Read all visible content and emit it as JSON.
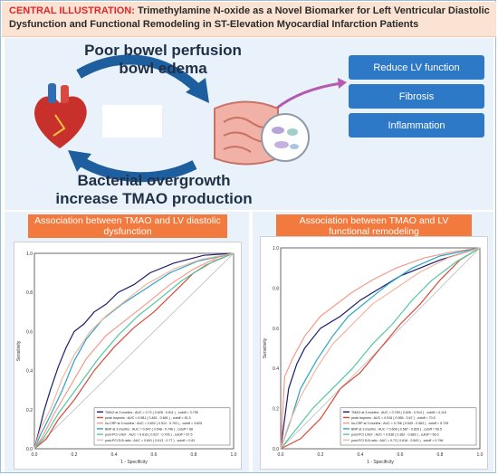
{
  "header": {
    "label": "CENTRAL ILLUSTRATION:",
    "title_line1": " Trimethylamine N-oxide as a Novel Biomarker for Left Ventricular Diastolic",
    "title_line2": "Dysfunction and Functional Remodeling in ST-Elevation Myocardial Infarction Patients"
  },
  "diagram": {
    "top_text_line1": "Poor bowel perfusion",
    "top_text_line2": "bowl edema",
    "bottom_text_line1": "Bacterial overgrowth",
    "bottom_text_line2": "increase TMAO production",
    "outcomes": [
      "Reduce LV function",
      "Fibrosis",
      "Inflammation"
    ],
    "icons": [
      "heart-icon",
      "intestine-icon",
      "bacteria-icon"
    ],
    "colors": {
      "arrow": "#1d5f9e",
      "box": "#2d79c7",
      "panel_title": "#f37a3e",
      "label_red": "#e0262a"
    }
  },
  "chart_data": [
    {
      "type": "line",
      "panel_title_line1": "Association between TMAO and LV diastolic",
      "panel_title_line2": "dysfunction",
      "xlabel": "1 - Specificity",
      "ylabel": "Sensitivity",
      "xlim": [
        0,
        1
      ],
      "ylim": [
        0,
        1
      ],
      "ticks": [
        "0.0",
        "0.2",
        "0.4",
        "0.6",
        "0.8",
        "1.0"
      ],
      "legend_position": "bottom-right",
      "legend": [
        "TMAO at 3 months : AUC = 0.72  ( 0.628 - 0.811 ) , cutoff = 3.795",
        "peak troponin : AUC = 0.581  ( 0.481 - 0.681 ) , cutoff = 61.3",
        "hs-CRP at 3 months : AUC = 0.602  ( 0.512 - 0.702 ) , cutoff = 3.625",
        "BNP at 3 months : AUC = 0.647  ( 0.548 - 0.746 ) , cutoff = 68",
        "post-PCI LVEF : AUC = 0.615  ( 0.527 - 0.705 ) , cutoff = 67.5",
        "post-PCI E/A ratio : AUC = 0.691  ( 0.613 - 0.77 ) , cutoff = 0.81"
      ],
      "series": [
        {
          "color": "#1b1f6b",
          "points": [
            [
              0,
              0
            ],
            [
              0.02,
              0.08
            ],
            [
              0.05,
              0.2
            ],
            [
              0.08,
              0.3
            ],
            [
              0.12,
              0.42
            ],
            [
              0.16,
              0.52
            ],
            [
              0.2,
              0.6
            ],
            [
              0.25,
              0.64
            ],
            [
              0.3,
              0.7
            ],
            [
              0.36,
              0.74
            ],
            [
              0.42,
              0.8
            ],
            [
              0.5,
              0.84
            ],
            [
              0.58,
              0.9
            ],
            [
              0.7,
              0.95
            ],
            [
              0.85,
              0.99
            ],
            [
              1,
              1
            ]
          ]
        },
        {
          "color": "#d84a3a",
          "points": [
            [
              0,
              0
            ],
            [
              0.06,
              0.05
            ],
            [
              0.12,
              0.15
            ],
            [
              0.2,
              0.25
            ],
            [
              0.3,
              0.4
            ],
            [
              0.4,
              0.52
            ],
            [
              0.5,
              0.62
            ],
            [
              0.6,
              0.7
            ],
            [
              0.7,
              0.8
            ],
            [
              0.8,
              0.9
            ],
            [
              0.9,
              0.96
            ],
            [
              1,
              1
            ]
          ]
        },
        {
          "color": "#f59a8a",
          "points": [
            [
              0,
              0
            ],
            [
              0.04,
              0.06
            ],
            [
              0.1,
              0.18
            ],
            [
              0.18,
              0.32
            ],
            [
              0.26,
              0.46
            ],
            [
              0.36,
              0.58
            ],
            [
              0.46,
              0.66
            ],
            [
              0.56,
              0.74
            ],
            [
              0.68,
              0.84
            ],
            [
              0.8,
              0.92
            ],
            [
              0.92,
              0.98
            ],
            [
              1,
              1
            ]
          ]
        },
        {
          "color": "#2aa6c6",
          "points": [
            [
              0,
              0
            ],
            [
              0.03,
              0.07
            ],
            [
              0.08,
              0.17
            ],
            [
              0.14,
              0.3
            ],
            [
              0.2,
              0.45
            ],
            [
              0.26,
              0.56
            ],
            [
              0.34,
              0.66
            ],
            [
              0.44,
              0.74
            ],
            [
              0.56,
              0.82
            ],
            [
              0.68,
              0.9
            ],
            [
              0.82,
              0.96
            ],
            [
              1,
              1
            ]
          ]
        },
        {
          "color": "#55c7a0",
          "points": [
            [
              0,
              0
            ],
            [
              0.05,
              0.06
            ],
            [
              0.12,
              0.18
            ],
            [
              0.22,
              0.32
            ],
            [
              0.32,
              0.46
            ],
            [
              0.42,
              0.58
            ],
            [
              0.52,
              0.68
            ],
            [
              0.62,
              0.76
            ],
            [
              0.74,
              0.86
            ],
            [
              0.86,
              0.94
            ],
            [
              1,
              1
            ]
          ]
        },
        {
          "color": "#f2b6a0",
          "points": [
            [
              0,
              0
            ],
            [
              0.03,
              0.1
            ],
            [
              0.08,
              0.2
            ],
            [
              0.14,
              0.36
            ],
            [
              0.2,
              0.48
            ],
            [
              0.28,
              0.6
            ],
            [
              0.36,
              0.68
            ],
            [
              0.46,
              0.76
            ],
            [
              0.56,
              0.84
            ],
            [
              0.7,
              0.92
            ],
            [
              0.84,
              0.97
            ],
            [
              1,
              1
            ]
          ]
        }
      ]
    },
    {
      "type": "line",
      "panel_title_line1": "Association between TMAO and LV",
      "panel_title_line2": "functional remodeling",
      "xlabel": "1 - Specificity",
      "ylabel": "Sensitivity",
      "xlim": [
        0,
        1
      ],
      "ylim": [
        0,
        1
      ],
      "ticks": [
        "0.0",
        "0.2",
        "0.4",
        "0.6",
        "0.8",
        "1.0"
      ],
      "legend_position": "bottom-right",
      "legend": [
        "TMAO at 3 months : AUC = 0.769  ( 0.626 - 0.914 ) , cutoff = 4.115",
        "peak troponin : AUC = 0.516  ( 0.365 - 0.67 ) , cutoff = 70.5",
        "hs-CRP at 3 months : AUC = 0.756  ( 0.549 - 0.963 ) , cutoff = 5.725",
        "BNP at 3 months : AUC = 0.608  ( 0.587 - 0.829 ) , cutoff = 59.5",
        "post-PCI LVEF : AUC = 0.636  ( 0.382 - 0.889 ) , cutoff = 56.5",
        "post-PCI E/A ratio : AUC = 0.73  ( 0.616 - 0.843 ) , cutoff = 0.796"
      ],
      "series": [
        {
          "color": "#1b1f6b",
          "points": [
            [
              0,
              0
            ],
            [
              0.04,
              0.3
            ],
            [
              0.08,
              0.42
            ],
            [
              0.12,
              0.5
            ],
            [
              0.2,
              0.6
            ],
            [
              0.3,
              0.66
            ],
            [
              0.4,
              0.74
            ],
            [
              0.5,
              0.8
            ],
            [
              0.6,
              0.86
            ],
            [
              0.7,
              0.9
            ],
            [
              0.8,
              0.94
            ],
            [
              0.9,
              0.97
            ],
            [
              1,
              1
            ]
          ]
        },
        {
          "color": "#d84a3a",
          "points": [
            [
              0,
              0
            ],
            [
              0.1,
              0.05
            ],
            [
              0.2,
              0.15
            ],
            [
              0.3,
              0.3
            ],
            [
              0.4,
              0.38
            ],
            [
              0.5,
              0.5
            ],
            [
              0.6,
              0.62
            ],
            [
              0.7,
              0.72
            ],
            [
              0.8,
              0.84
            ],
            [
              0.9,
              0.94
            ],
            [
              1,
              1
            ]
          ]
        },
        {
          "color": "#f59a8a",
          "points": [
            [
              0,
              0
            ],
            [
              0.02,
              0.36
            ],
            [
              0.06,
              0.45
            ],
            [
              0.12,
              0.56
            ],
            [
              0.2,
              0.66
            ],
            [
              0.28,
              0.72
            ],
            [
              0.36,
              0.78
            ],
            [
              0.46,
              0.84
            ],
            [
              0.58,
              0.9
            ],
            [
              0.72,
              0.95
            ],
            [
              0.86,
              0.98
            ],
            [
              1,
              1
            ]
          ]
        },
        {
          "color": "#2aa6c6",
          "points": [
            [
              0,
              0
            ],
            [
              0.05,
              0.14
            ],
            [
              0.1,
              0.3
            ],
            [
              0.18,
              0.44
            ],
            [
              0.26,
              0.56
            ],
            [
              0.34,
              0.66
            ],
            [
              0.44,
              0.74
            ],
            [
              0.54,
              0.82
            ],
            [
              0.66,
              0.9
            ],
            [
              0.8,
              0.96
            ],
            [
              1,
              1
            ]
          ]
        },
        {
          "color": "#55c7a0",
          "points": [
            [
              0,
              0
            ],
            [
              0.08,
              0.1
            ],
            [
              0.16,
              0.2
            ],
            [
              0.26,
              0.3
            ],
            [
              0.36,
              0.4
            ],
            [
              0.46,
              0.52
            ],
            [
              0.56,
              0.62
            ],
            [
              0.66,
              0.74
            ],
            [
              0.76,
              0.84
            ],
            [
              0.88,
              0.93
            ],
            [
              1,
              1
            ]
          ]
        },
        {
          "color": "#f2b6a0",
          "points": [
            [
              0,
              0
            ],
            [
              0.04,
              0.12
            ],
            [
              0.1,
              0.26
            ],
            [
              0.18,
              0.4
            ],
            [
              0.26,
              0.52
            ],
            [
              0.36,
              0.62
            ],
            [
              0.46,
              0.72
            ],
            [
              0.58,
              0.8
            ],
            [
              0.7,
              0.88
            ],
            [
              0.84,
              0.95
            ],
            [
              1,
              1
            ]
          ]
        }
      ]
    }
  ]
}
